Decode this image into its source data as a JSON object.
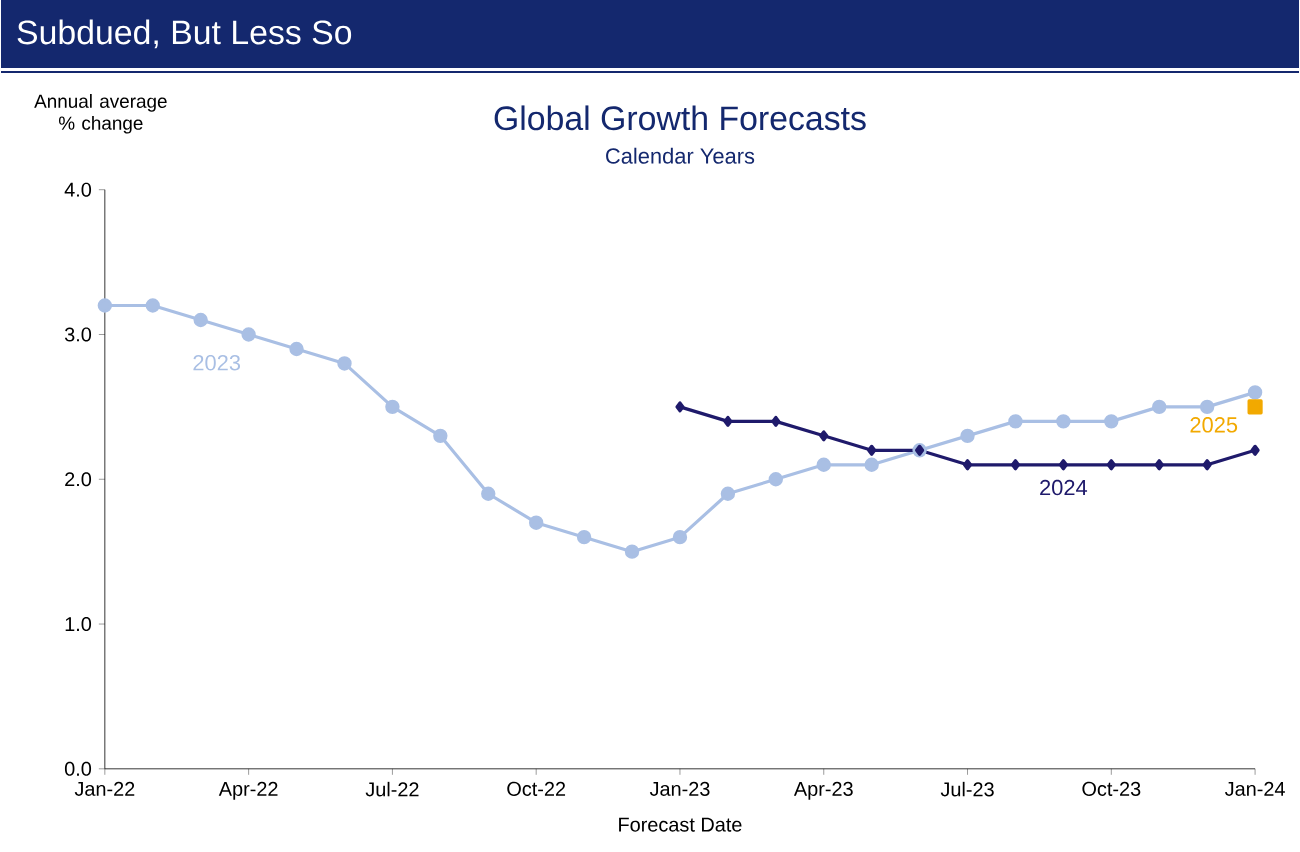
{
  "chart_data": {
    "type": "line",
    "title": "Global Growth Forecasts",
    "subtitle": "Calendar Years",
    "xlabel": "Forecast Date",
    "ylabel": "Annual average % change",
    "annotations": [
      "Subdued, But Less So"
    ],
    "series": [
      {
        "name": "2023",
        "color": "#a9bfe4",
        "marker": "circle",
        "x": [
          "2022-01",
          "2022-02",
          "2022-03",
          "2022-04",
          "2022-05",
          "2022-06",
          "2022-07",
          "2022-08",
          "2022-09",
          "2022-10",
          "2022-11",
          "2022-12",
          "2023-01",
          "2023-02",
          "2023-03",
          "2023-04",
          "2023-05",
          "2023-06",
          "2023-07",
          "2023-08",
          "2023-09",
          "2023-10",
          "2023-11",
          "2023-12",
          "2024-01"
        ],
        "values": [
          3.2,
          3.2,
          3.1,
          3.0,
          2.9,
          2.8,
          2.5,
          2.3,
          1.9,
          1.7,
          1.6,
          1.5,
          1.6,
          1.9,
          2.0,
          2.1,
          2.1,
          2.2,
          2.3,
          2.4,
          2.4,
          2.4,
          2.5,
          2.5,
          2.6
        ]
      },
      {
        "name": "2024",
        "color": "#1f1a6b",
        "marker": "diamond",
        "x": [
          "2023-01",
          "2023-02",
          "2023-03",
          "2023-04",
          "2023-05",
          "2023-06",
          "2023-07",
          "2023-08",
          "2023-09",
          "2023-10",
          "2023-11",
          "2023-12",
          "2024-01"
        ],
        "values": [
          2.5,
          2.4,
          2.4,
          2.3,
          2.2,
          2.2,
          2.1,
          2.1,
          2.1,
          2.1,
          2.1,
          2.1,
          2.2
        ]
      },
      {
        "name": "2025",
        "color": "#f2a900",
        "marker": "square",
        "x": [
          "2024-01"
        ],
        "values": [
          2.5
        ]
      }
    ],
    "xlim": [
      "2022-01",
      "2024-01"
    ],
    "xticks": [
      {
        "value": "2022-01",
        "label": "Jan-22"
      },
      {
        "value": "2022-04",
        "label": "Apr-22"
      },
      {
        "value": "2022-07",
        "label": "Jul-22"
      },
      {
        "value": "2022-10",
        "label": "Oct-22"
      },
      {
        "value": "2023-01",
        "label": "Jan-23"
      },
      {
        "value": "2023-04",
        "label": "Apr-23"
      },
      {
        "value": "2023-07",
        "label": "Jul-23"
      },
      {
        "value": "2023-10",
        "label": "Oct-23"
      },
      {
        "value": "2024-01",
        "label": "Jan-24"
      }
    ],
    "ylim": [
      0,
      4
    ],
    "yticks": [
      {
        "value": 0,
        "label": "0.0"
      },
      {
        "value": 1,
        "label": "1.0"
      },
      {
        "value": 2,
        "label": "2.0"
      },
      {
        "value": 3,
        "label": "3.0"
      },
      {
        "value": 4,
        "label": "4.0"
      }
    ],
    "grid": false,
    "line_style": "solid"
  }
}
